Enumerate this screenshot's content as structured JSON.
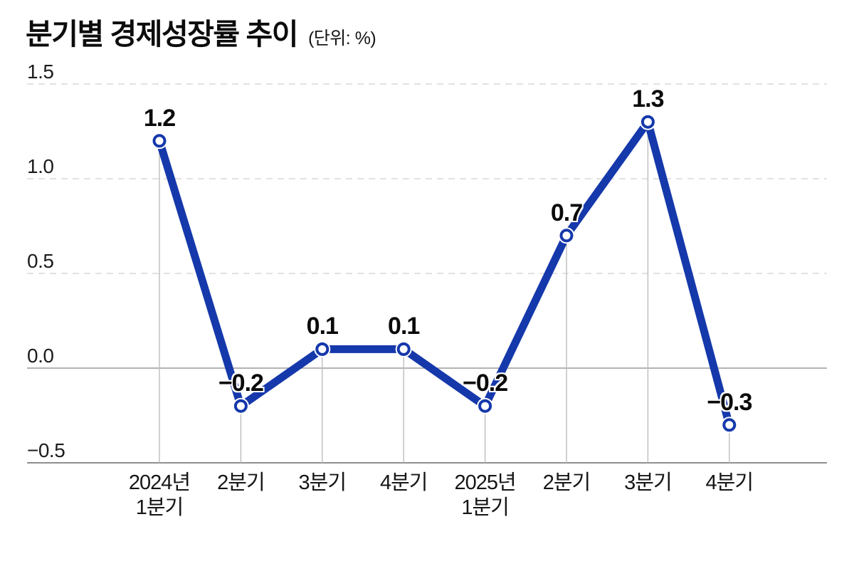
{
  "header": {
    "title": "분기별 경제성장률 추이",
    "unit": "(단위: %)"
  },
  "colors": {
    "line": "#1538ab",
    "marker_fill": "#ffffff",
    "grid_dashed": "#d8d8d8",
    "zero_line": "#9a9a9a",
    "axis_line": "#8f8f8f",
    "stem": "#bdbdbd"
  },
  "chart_data": {
    "type": "line",
    "title": "분기별 경제성장률 추이",
    "unit_label": "(단위: %)",
    "categories": [
      "2024년\n1분기",
      "2분기",
      "3분기",
      "4분기",
      "2025년\n1분기",
      "2분기",
      "3분기",
      "4분기"
    ],
    "values": [
      1.2,
      -0.2,
      0.1,
      0.1,
      -0.2,
      0.7,
      1.3,
      -0.3
    ],
    "point_labels": [
      "1.2",
      "−0.2",
      "0.1",
      "0.1",
      "−0.2",
      "0.7",
      "1.3",
      "−0.3"
    ],
    "y_ticks": [
      {
        "label": "1.5",
        "value": 1.5
      },
      {
        "label": "1.0",
        "value": 1.0
      },
      {
        "label": "0.5",
        "value": 0.5
      },
      {
        "label": "0.0",
        "value": 0.0
      },
      {
        "label": "−0.5",
        "value": -0.5
      }
    ],
    "ylim": [
      -0.5,
      1.5
    ],
    "grid": "horizontal dashed gridlines; solid zero line; vertical drop line from each point to x-axis",
    "legend": "none",
    "series_color": "#1538ab",
    "marker": "white circle with blue ring"
  }
}
